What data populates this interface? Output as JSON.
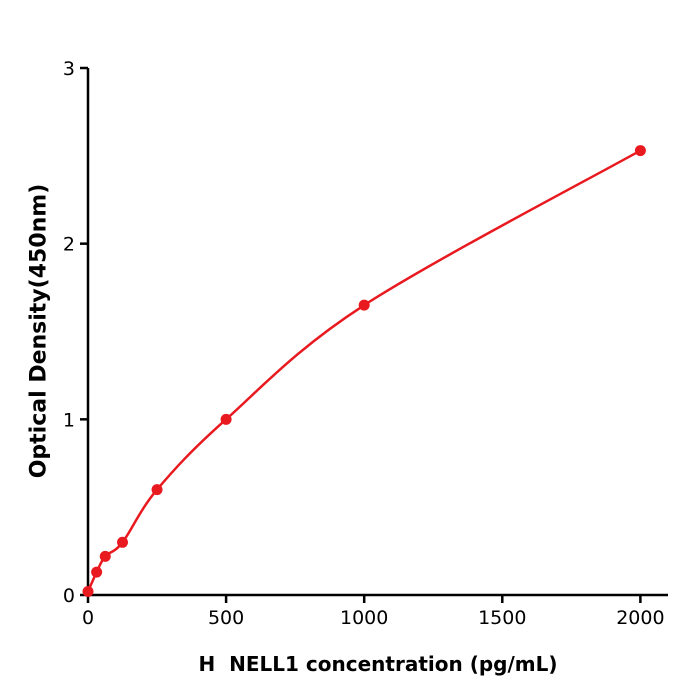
{
  "figure": {
    "background": "#ffffff"
  },
  "chart_data": {
    "type": "line",
    "markers": true,
    "title": "",
    "xlabel": "H  NELL1 concentration (pg/mL)",
    "ylabel": "Optical Density(450nm)",
    "x": [
      0,
      31.25,
      62.5,
      125,
      250,
      500,
      1000,
      2000
    ],
    "y": [
      0.02,
      0.13,
      0.22,
      0.3,
      0.6,
      1.0,
      1.65,
      2.53
    ],
    "xlim": [
      0,
      2100
    ],
    "ylim": [
      0,
      3
    ],
    "x_ticks": [
      0,
      500,
      1000,
      1500,
      2000
    ],
    "y_ticks": [
      0,
      1,
      2,
      3
    ],
    "grid": false,
    "legend": "none",
    "line_color": "#e8191f",
    "marker_color": "#e8191f",
    "axis_color": "#000000"
  }
}
